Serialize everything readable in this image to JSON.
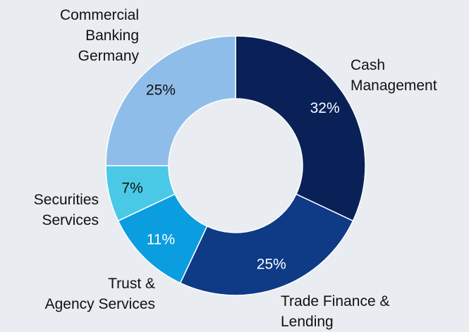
{
  "chart_data": {
    "type": "donut",
    "categories": [
      "Cash\nManagement",
      "Trade Finance &\nLending",
      "Trust &\nAgency Services",
      "Securities\nServices",
      "Commercial\nBanking\nGermany"
    ],
    "values": [
      32,
      25,
      11,
      7,
      25
    ],
    "value_labels": [
      "32%",
      "25%",
      "11%",
      "7%",
      "25%"
    ],
    "colors": [
      "#0a2158",
      "#0e3a86",
      "#0a9ee0",
      "#4ac9e6",
      "#8fbde9"
    ]
  }
}
